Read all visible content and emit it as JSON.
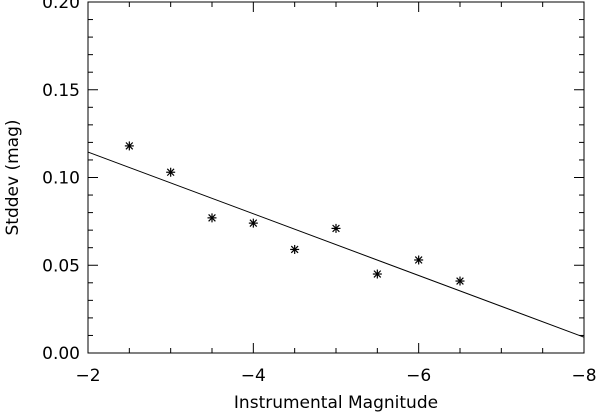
{
  "chart_data": {
    "type": "scatter",
    "xlabel": "Instrumental Magnitude",
    "ylabel": "Stddev (mag)",
    "xlim": [
      -2,
      -8
    ],
    "ylim": [
      0.0,
      0.2
    ],
    "x_ticks": [
      -2,
      -4,
      -6,
      -8
    ],
    "x_tick_labels": [
      "−2",
      "−4",
      "−6",
      "−8"
    ],
    "y_ticks": [
      0.0,
      0.05,
      0.1,
      0.15,
      0.2
    ],
    "y_tick_labels": [
      "0.00",
      "0.05",
      "0.10",
      "0.15",
      "0.20"
    ],
    "grid": false,
    "marker": "asterisk",
    "color": "#000000",
    "points": [
      {
        "x": -2.5,
        "y": 0.118
      },
      {
        "x": -3.0,
        "y": 0.103
      },
      {
        "x": -3.5,
        "y": 0.077
      },
      {
        "x": -4.0,
        "y": 0.074
      },
      {
        "x": -4.5,
        "y": 0.059
      },
      {
        "x": -5.0,
        "y": 0.071
      },
      {
        "x": -5.5,
        "y": 0.045
      },
      {
        "x": -6.0,
        "y": 0.053
      },
      {
        "x": -6.5,
        "y": 0.041
      }
    ],
    "fit_line": {
      "x": [
        -2,
        -8
      ],
      "y": [
        0.1145,
        0.009
      ]
    }
  }
}
